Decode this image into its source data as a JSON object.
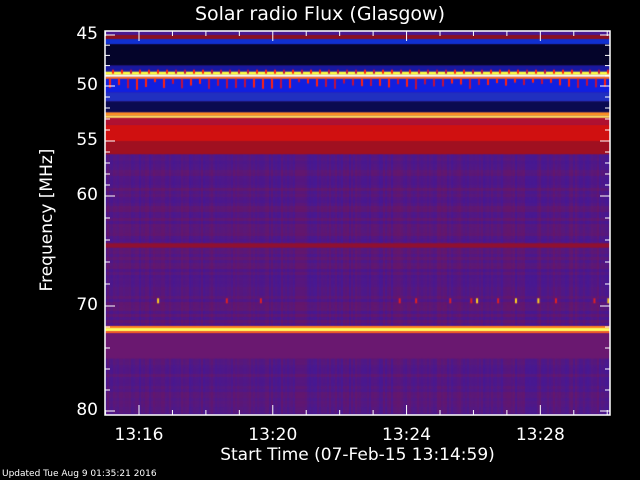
{
  "chart_data": {
    "type": "heatmap",
    "title": "Solar radio Flux (Glasgow)",
    "xlabel": "Start Time (07-Feb-15 13:14:59)",
    "ylabel": "Frequency [MHz]",
    "x_tick_labels": [
      "13:16",
      "13:20",
      "13:24",
      "13:28"
    ],
    "y_tick_labels": [
      "45",
      "50",
      "55",
      "60",
      "70",
      "80"
    ],
    "xlim": [
      "13:14:59",
      "13:30:05"
    ],
    "ylim": [
      45,
      80
    ],
    "y_direction": "increasing-downward",
    "colormap": "black-blue-purple-red-yellow-white",
    "background_level_color": "#4a1a90",
    "features": [
      {
        "freq": [
          45.0,
          45.4
        ],
        "color": "#8a1020"
      },
      {
        "freq": [
          45.4,
          45.9
        ],
        "color": "#1030d0"
      },
      {
        "freq": [
          45.9,
          48.0
        ],
        "color": "#04042a"
      },
      {
        "freq": [
          48.0,
          48.6
        ],
        "color": "#1818a0"
      },
      {
        "freq": [
          48.6,
          48.9
        ],
        "color": "#ffff40"
      },
      {
        "freq": [
          48.9,
          49.1
        ],
        "color": "#ffffff"
      },
      {
        "freq": [
          49.1,
          49.3
        ],
        "color": "#ff7020"
      },
      {
        "freq": [
          49.3,
          50.6
        ],
        "color": "#1020e0"
      },
      {
        "freq": [
          50.6,
          51.4
        ],
        "color": "#2030c0"
      },
      {
        "freq": [
          51.4,
          52.4
        ],
        "color": "#0a0a50"
      },
      {
        "freq": [
          52.4,
          52.7
        ],
        "color": "#ff9020"
      },
      {
        "freq": [
          52.7,
          52.9
        ],
        "color": "#ffe060"
      },
      {
        "freq": [
          52.9,
          53.5
        ],
        "color": "#b01030"
      },
      {
        "freq": [
          53.5,
          55.0
        ],
        "color": "#d01010"
      },
      {
        "freq": [
          55.0,
          56.2
        ],
        "color": "#a01020"
      },
      {
        "freq": [
          64.3,
          64.7
        ],
        "color": "#901030"
      },
      {
        "freq": [
          71.9,
          72.1
        ],
        "color": "#ff8020"
      },
      {
        "freq": [
          72.1,
          72.4
        ],
        "color": "#ffff60"
      },
      {
        "freq": [
          72.4,
          72.6
        ],
        "color": "#ff6020"
      },
      {
        "freq": [
          72.6,
          75.0
        ],
        "color": "#6a1870"
      }
    ],
    "grid": false
  },
  "footer": {
    "updated": "Updated Tue Aug  9 01:35:21 2016"
  }
}
